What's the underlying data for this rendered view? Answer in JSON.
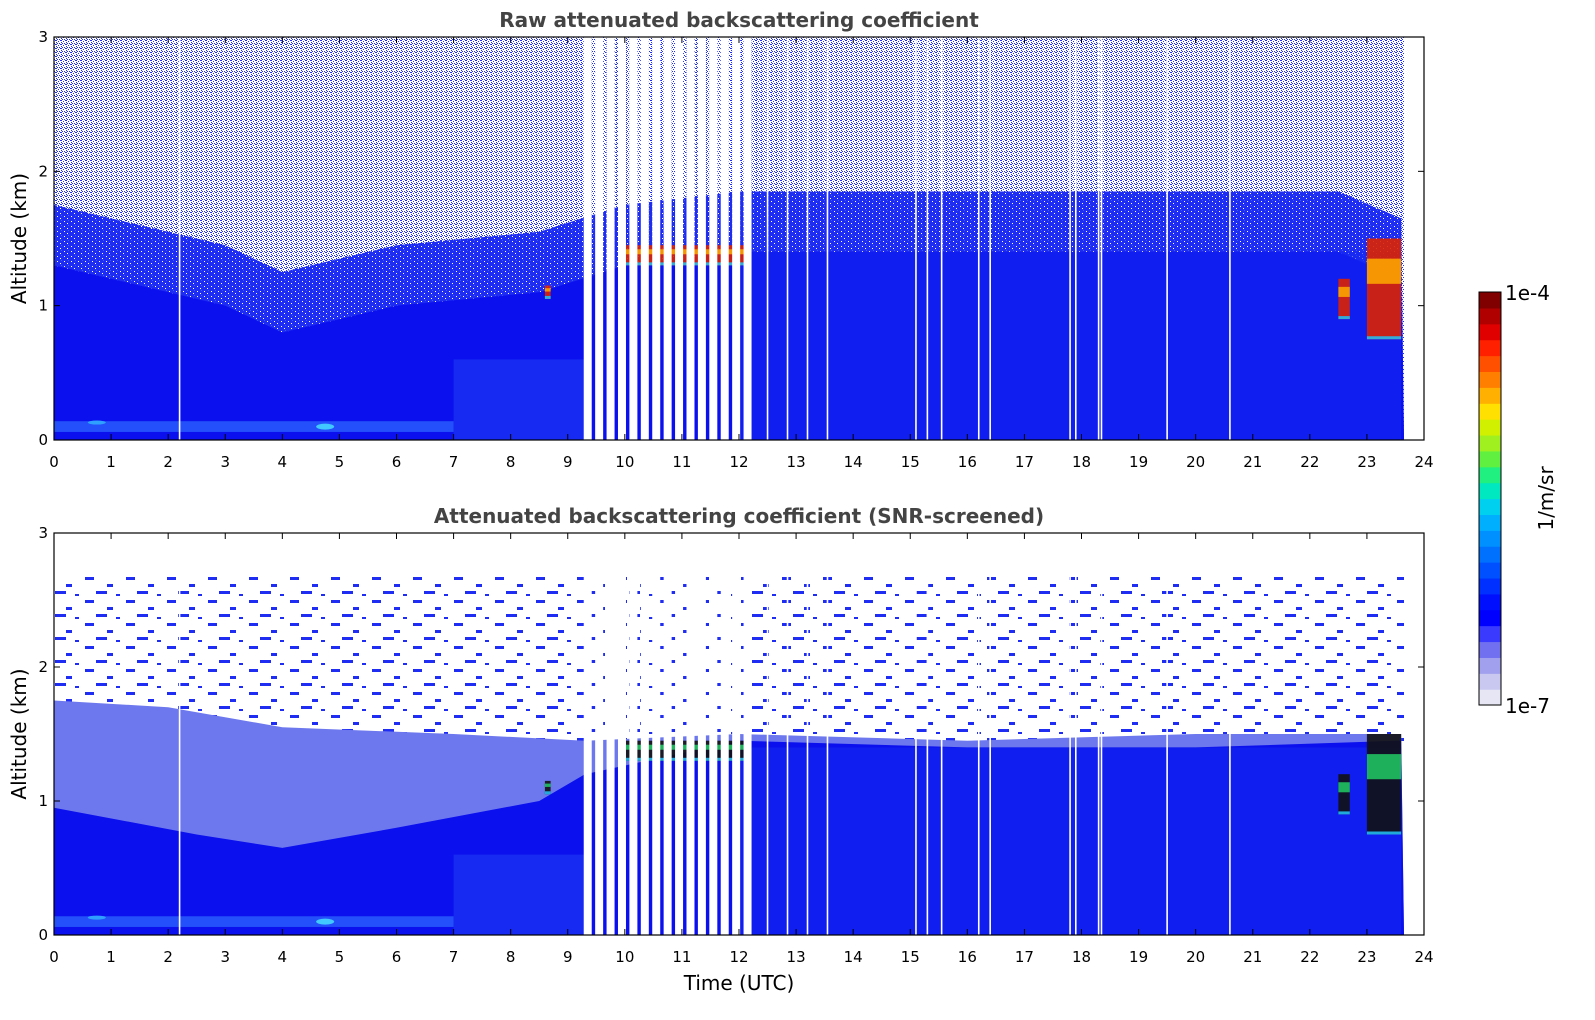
{
  "chart_data": [
    {
      "type": "heatmap",
      "title": "Raw attenuated backscattering coefficient",
      "xlabel": "",
      "ylabel": "Altitude (km)",
      "xlim": [
        0,
        24
      ],
      "ylim": [
        0,
        3
      ],
      "x_ticks": [
        "0",
        "1",
        "2",
        "3",
        "4",
        "5",
        "6",
        "7",
        "8",
        "9",
        "10",
        "11",
        "12",
        "13",
        "14",
        "15",
        "16",
        "17",
        "18",
        "19",
        "20",
        "21",
        "22",
        "23",
        "24"
      ],
      "y_ticks": [
        "0",
        "1",
        "2",
        "3"
      ],
      "colorscale": "log",
      "data_end_time": 23.65,
      "gaps": [
        2.2,
        9.35,
        9.55,
        9.75,
        9.95,
        10.15,
        10.35,
        10.55,
        10.75,
        10.95,
        11.15,
        11.35,
        11.55,
        11.75,
        11.95,
        12.15,
        12.5,
        12.85,
        13.2,
        13.55,
        15.1,
        15.3,
        15.55,
        16.2,
        16.4,
        17.8,
        17.9,
        18.3,
        18.35,
        19.5,
        20.6
      ],
      "boundary_layer_top_km": [
        {
          "x": 0,
          "y": 1.3
        },
        {
          "x": 3,
          "y": 1.0
        },
        {
          "x": 4,
          "y": 0.8
        },
        {
          "x": 6,
          "y": 1.0
        },
        {
          "x": 8.5,
          "y": 1.1
        },
        {
          "x": 10,
          "y": 1.3
        },
        {
          "x": 12,
          "y": 1.4
        },
        {
          "x": 16,
          "y": 1.4
        },
        {
          "x": 20,
          "y": 1.4
        },
        {
          "x": 22.5,
          "y": 1.4
        },
        {
          "x": 23.6,
          "y": 1.2
        }
      ],
      "cloud_patches": [
        {
          "x0": 10.0,
          "x1": 12.1,
          "y0": 1.3,
          "y1": 1.45
        },
        {
          "x0": 8.6,
          "x1": 8.7,
          "y0": 1.05,
          "y1": 1.15
        },
        {
          "x0": 22.5,
          "x1": 22.7,
          "y0": 0.9,
          "y1": 1.2
        },
        {
          "x0": 23.0,
          "x1": 23.6,
          "y0": 0.75,
          "y1": 1.5
        }
      ]
    },
    {
      "type": "heatmap",
      "title": "Attenuated backscattering coefficient (SNR-screened)",
      "xlabel": "Time (UTC)",
      "ylabel": "Altitude (km)",
      "xlim": [
        0,
        24
      ],
      "ylim": [
        0,
        3
      ],
      "x_ticks": [
        "0",
        "1",
        "2",
        "3",
        "4",
        "5",
        "6",
        "7",
        "8",
        "9",
        "10",
        "11",
        "12",
        "13",
        "14",
        "15",
        "16",
        "17",
        "18",
        "19",
        "20",
        "21",
        "22",
        "23",
        "24"
      ],
      "y_ticks": [
        "0",
        "1",
        "2",
        "3"
      ],
      "colorscale": "log",
      "data_end_time": 23.65,
      "gaps": [
        2.2,
        9.35,
        9.55,
        9.75,
        9.95,
        10.15,
        10.35,
        10.55,
        10.75,
        10.95,
        11.15,
        11.35,
        11.55,
        11.75,
        11.95,
        12.15,
        12.5,
        12.85,
        13.2,
        13.55,
        15.1,
        15.3,
        15.55,
        16.2,
        16.4,
        17.8,
        17.9,
        18.3,
        18.35,
        19.5,
        20.6
      ],
      "boundary_layer_top_km": [
        {
          "x": 0,
          "y": 1.75
        },
        {
          "x": 2,
          "y": 1.7
        },
        {
          "x": 4,
          "y": 1.55
        },
        {
          "x": 7,
          "y": 1.5
        },
        {
          "x": 9.3,
          "y": 1.45
        },
        {
          "x": 12,
          "y": 1.5
        },
        {
          "x": 16,
          "y": 1.45
        },
        {
          "x": 20,
          "y": 1.5
        },
        {
          "x": 23.6,
          "y": 1.5
        }
      ],
      "cloud_patches": [
        {
          "x0": 10.0,
          "x1": 12.1,
          "y0": 1.3,
          "y1": 1.45
        },
        {
          "x0": 8.6,
          "x1": 8.7,
          "y0": 1.05,
          "y1": 1.15
        },
        {
          "x0": 22.5,
          "x1": 22.7,
          "y0": 0.9,
          "y1": 1.2
        },
        {
          "x0": 23.0,
          "x1": 23.6,
          "y0": 0.75,
          "y1": 1.5
        }
      ]
    }
  ],
  "colorbar": {
    "max_label": "1e-4",
    "min_label": "1e-7",
    "unit_label": "1/m/sr",
    "colors": [
      "#e6e6f5",
      "#c8c8f0",
      "#a0a0ee",
      "#7070f0",
      "#3a3aff",
      "#0000ff",
      "#0010ff",
      "#0030ff",
      "#0050ff",
      "#0070ff",
      "#0090ff",
      "#00b0ff",
      "#00d0f0",
      "#00e8c0",
      "#20f080",
      "#60f040",
      "#a0f020",
      "#d0f000",
      "#ffe000",
      "#ffb000",
      "#ff8000",
      "#ff5000",
      "#ff2000",
      "#e00000",
      "#b00000",
      "#800000"
    ]
  },
  "colors": {
    "title": "#444444",
    "background_blue": "#0000ee",
    "mid_blue": "#1a3aff",
    "light_blue": "#6a7cf0",
    "cloud_red": "#cc1100",
    "cloud_yellow": "#ffcc00"
  }
}
